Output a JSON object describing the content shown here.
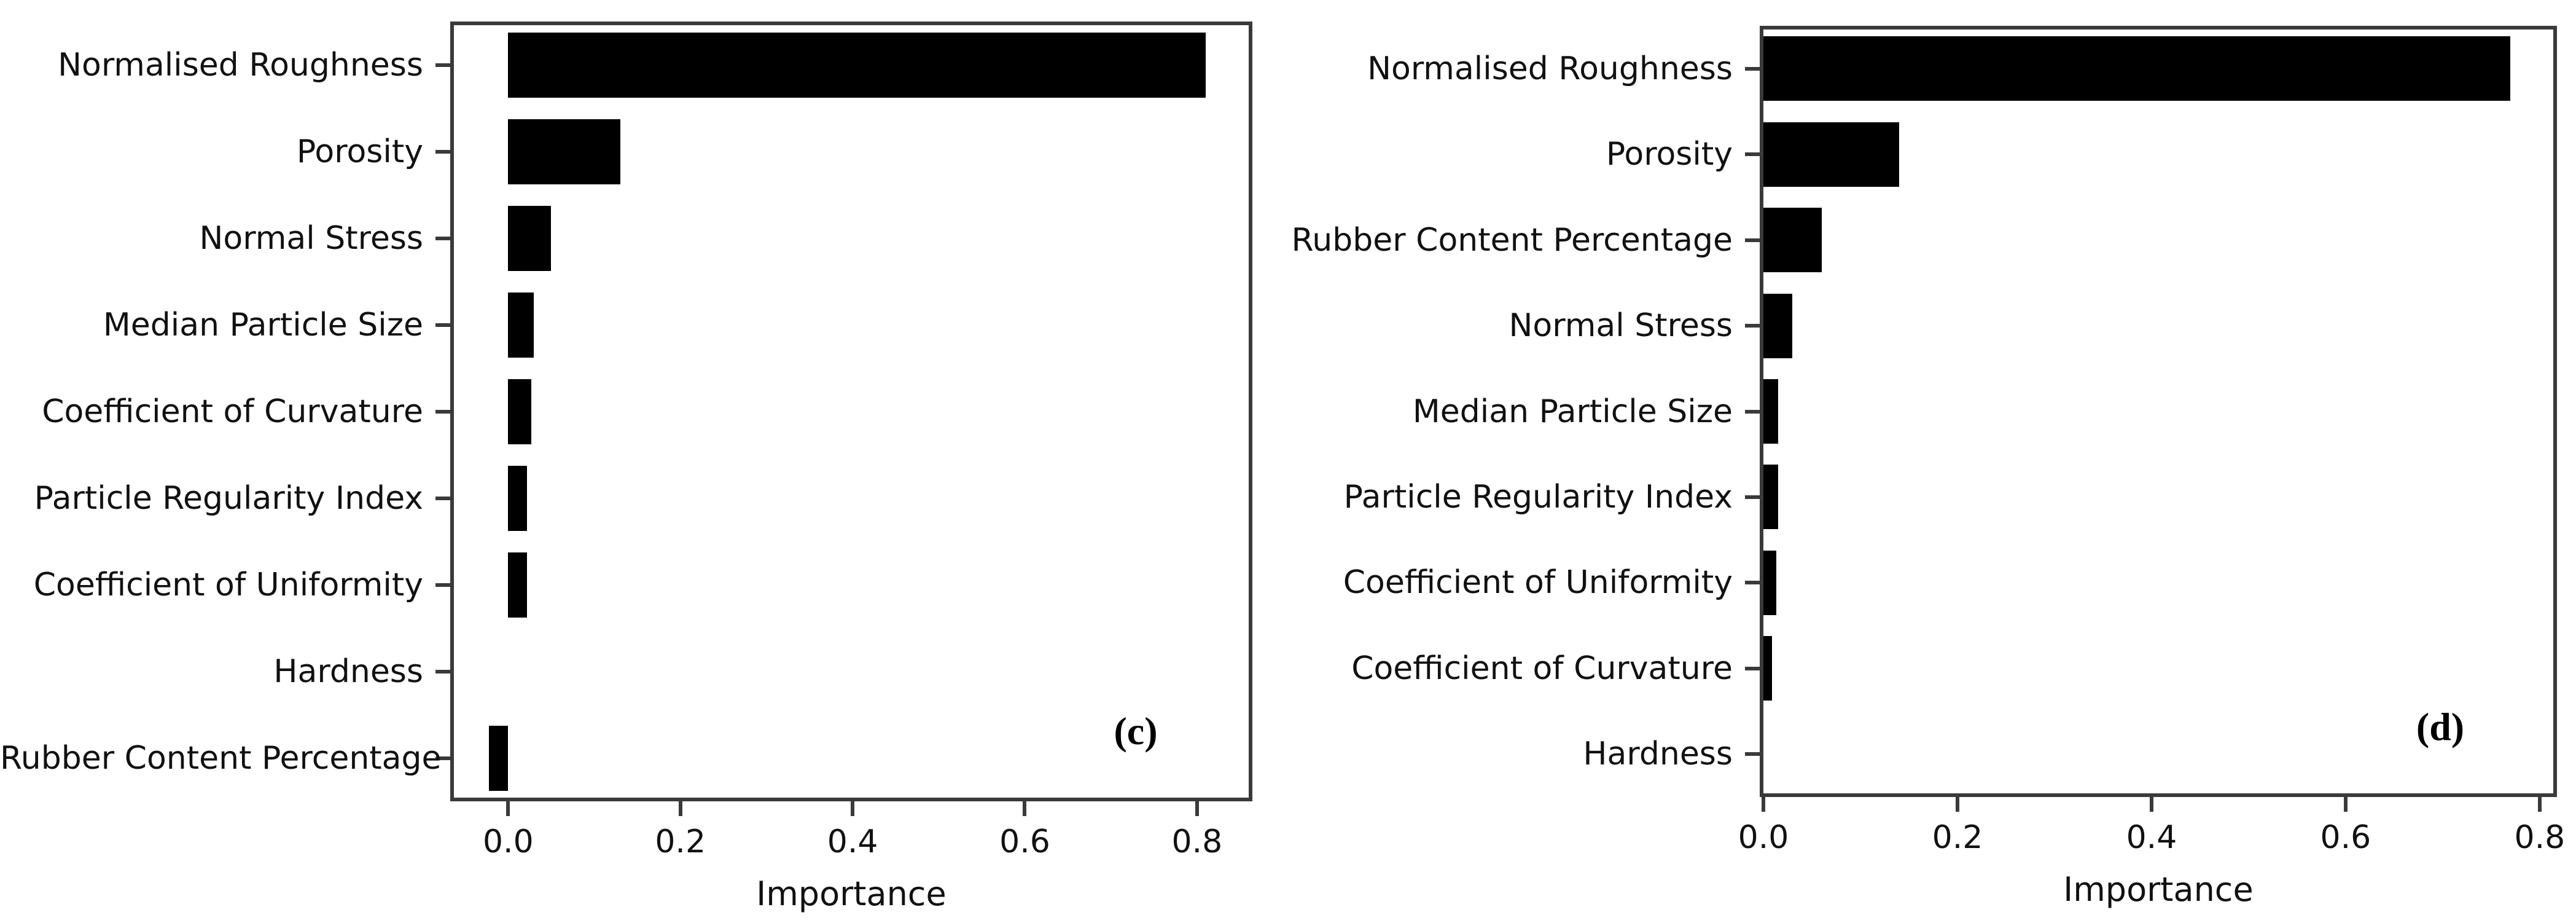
{
  "figure": {
    "background": "#ffffff",
    "colors": {
      "bar": "#000000",
      "axes": "#3a3a3a",
      "text": "#111111"
    },
    "panels": [
      {
        "label": "(c)",
        "description": "feature importance bar chart"
      },
      {
        "label": "(d)",
        "description": "feature importance bar chart"
      }
    ]
  },
  "chart_data": [
    {
      "type": "bar",
      "orientation": "horizontal",
      "panel_label": "(c)",
      "title": "",
      "xlabel": "Importance",
      "ylabel": "",
      "categories": [
        "Normalised Roughness",
        "Porosity",
        "Normal Stress",
        "Median Particle Size",
        "Coefficient of Curvature",
        "Particle Regularity Index",
        "Coefficient of Uniformity",
        "Hardness",
        "Rubber Content Percentage"
      ],
      "values": [
        0.81,
        0.13,
        0.05,
        0.03,
        0.027,
        0.022,
        0.022,
        0.0,
        -0.022
      ],
      "x_tick_values": [
        0.0,
        0.2,
        0.4,
        0.6,
        0.8
      ],
      "x_tick_labels": [
        "0.0",
        "0.2",
        "0.4",
        "0.6",
        "0.8"
      ],
      "xlim": [
        -0.063,
        0.86
      ],
      "bar_color": "#000000",
      "grid": false,
      "legend": null
    },
    {
      "type": "bar",
      "orientation": "horizontal",
      "panel_label": "(d)",
      "title": "",
      "xlabel": "Importance",
      "ylabel": "",
      "categories": [
        "Normalised Roughness",
        "Porosity",
        "Rubber Content Percentage",
        "Normal Stress",
        "Median Particle Size",
        "Particle Regularity Index",
        "Coefficient of Uniformity",
        "Coefficient of Curvature",
        "Hardness"
      ],
      "values": [
        0.77,
        0.14,
        0.06,
        0.03,
        0.015,
        0.015,
        0.013,
        0.009,
        0.0
      ],
      "x_tick_values": [
        0.0,
        0.2,
        0.4,
        0.6,
        0.8
      ],
      "x_tick_labels": [
        "0.0",
        "0.2",
        "0.4",
        "0.6",
        "0.8"
      ],
      "xlim": [
        0.0,
        0.814
      ],
      "bar_color": "#000000",
      "grid": false,
      "legend": null
    }
  ]
}
